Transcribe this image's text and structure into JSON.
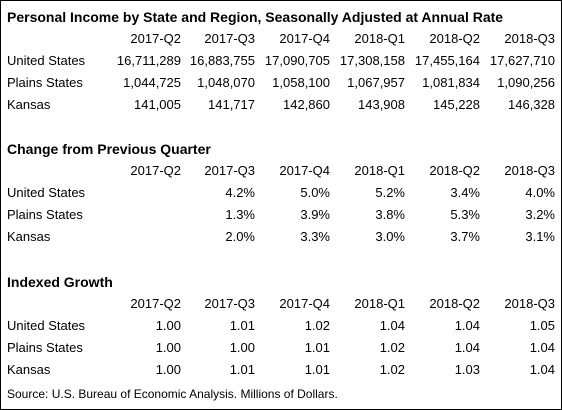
{
  "title": "Personal Income by State and Region, Seasonally Adjusted at Annual Rate",
  "sections": [
    {
      "columns": [
        "2017-Q2",
        "2017-Q3",
        "2017-Q4",
        "2018-Q1",
        "2018-Q2",
        "2018-Q3"
      ],
      "rows": [
        {
          "label": "United States",
          "cells": [
            "16,711,289",
            "16,883,755",
            "17,090,705",
            "17,308,158",
            "17,455,164",
            "17,627,710"
          ]
        },
        {
          "label": "Plains States",
          "cells": [
            "1,044,725",
            "1,048,070",
            "1,058,100",
            "1,067,957",
            "1,081,834",
            "1,090,256"
          ]
        },
        {
          "label": "Kansas",
          "cells": [
            "141,005",
            "141,717",
            "142,860",
            "143,908",
            "145,228",
            "146,328"
          ]
        }
      ]
    },
    {
      "title": "Change from Previous Quarter",
      "columns": [
        "2017-Q2",
        "2017-Q3",
        "2017-Q4",
        "2018-Q1",
        "2018-Q2",
        "2018-Q3"
      ],
      "rows": [
        {
          "label": "United States",
          "cells": [
            "4.2%",
            "5.0%",
            "5.2%",
            "3.4%",
            "4.0%"
          ]
        },
        {
          "label": "Plains States",
          "cells": [
            "1.3%",
            "3.9%",
            "3.8%",
            "5.3%",
            "3.2%"
          ]
        },
        {
          "label": "Kansas",
          "cells": [
            "2.0%",
            "3.3%",
            "3.0%",
            "3.7%",
            "3.1%"
          ]
        }
      ]
    },
    {
      "title": "Indexed Growth",
      "columns": [
        "2017-Q2",
        "2017-Q3",
        "2017-Q4",
        "2018-Q1",
        "2018-Q2",
        "2018-Q3"
      ],
      "rows": [
        {
          "label": "United States",
          "cells": [
            "1.00",
            "1.01",
            "1.02",
            "1.04",
            "1.04",
            "1.05"
          ]
        },
        {
          "label": "Plains States",
          "cells": [
            "1.00",
            "1.00",
            "1.01",
            "1.02",
            "1.04",
            "1.04"
          ]
        },
        {
          "label": "Kansas",
          "cells": [
            "1.00",
            "1.01",
            "1.01",
            "1.02",
            "1.03",
            "1.04"
          ]
        }
      ]
    }
  ],
  "source": "Source: U.S. Bureau of Economic Analysis. Millions of Dollars."
}
